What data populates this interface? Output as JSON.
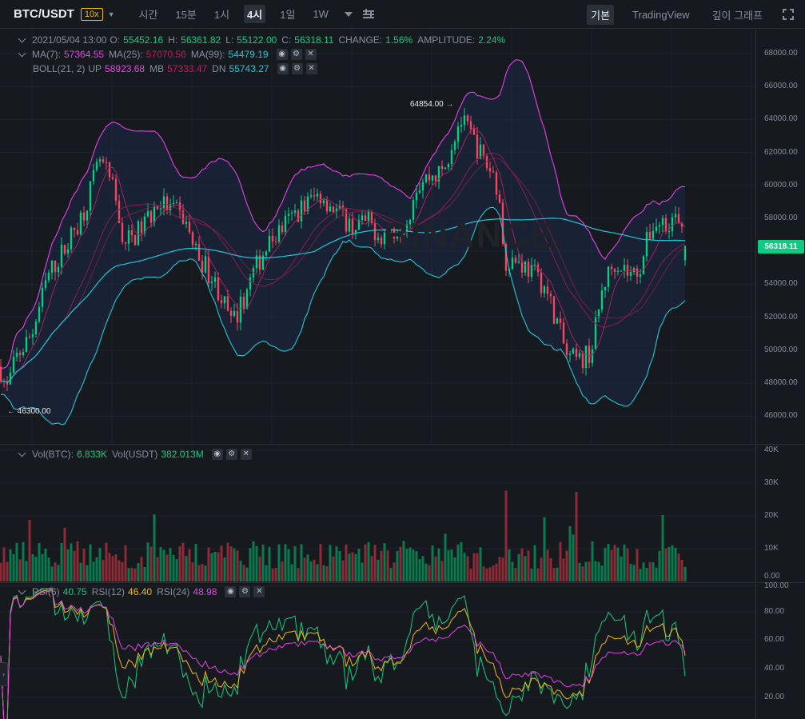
{
  "header": {
    "symbol": "BTC/USDT",
    "leverage": "10x",
    "intervals": [
      {
        "label": "시간",
        "active": false
      },
      {
        "label": "15분",
        "active": false
      },
      {
        "label": "1시",
        "active": false
      },
      {
        "label": "4시",
        "active": true
      },
      {
        "label": "1일",
        "active": false
      },
      {
        "label": "1W",
        "active": false
      }
    ],
    "views": [
      {
        "label": "기본",
        "active": true
      },
      {
        "label": "TradingView",
        "active": false
      },
      {
        "label": "깊이 그래프",
        "active": false
      }
    ]
  },
  "ohlc": {
    "date": "2021/05/04 13:00",
    "o_label": "O:",
    "o": "55452.16",
    "h_label": "H:",
    "h": "56361.82",
    "l_label": "L:",
    "l": "55122.00",
    "c_label": "C:",
    "c": "56318.11",
    "change_label": "CHANGE:",
    "change": "1.56%",
    "amp_label": "AMPLITUDE:",
    "amp": "2.24%"
  },
  "ma": {
    "ma7_label": "MA(7):",
    "ma7": "57364.55",
    "ma25_label": "MA(25):",
    "ma25": "57070.56",
    "ma99_label": "MA(99):",
    "ma99": "54479.19"
  },
  "boll": {
    "label": "BOLL(21, 2)",
    "up_label": "UP",
    "up": "58923.68",
    "mb_label": "MB",
    "mb": "57333.47",
    "dn_label": "DN",
    "dn": "55743.27"
  },
  "vol": {
    "btc_label": "Vol(BTC):",
    "btc": "6.833K",
    "usdt_label": "Vol(USDT)",
    "usdt": "382.013M"
  },
  "rsi": {
    "r6_label": "RSI(6)",
    "r6": "40.75",
    "r12_label": "RSI(12)",
    "r12": "46.40",
    "r24_label": "RSI(24)",
    "r24": "48.98"
  },
  "price_axis": [
    "68000.00",
    "66000.00",
    "64000.00",
    "62000.00",
    "60000.00",
    "58000.00",
    "56000.00",
    "54000.00",
    "52000.00",
    "50000.00",
    "48000.00",
    "46000.00"
  ],
  "vol_axis": [
    "40K",
    "30K",
    "20K",
    "10K",
    "0.00"
  ],
  "rsi_axis": [
    "100.00",
    "80.00",
    "60.00",
    "40.00",
    "20.00"
  ],
  "last_price": "56318.11",
  "high_marker": "64854.00",
  "low_marker": "46300.00",
  "watermark": "BINANCE",
  "colors": {
    "up": "#0ecb81",
    "down": "#f6465d",
    "ma7": "#e840e8",
    "ma25": "#c2185b",
    "ma99": "#1fc7d4",
    "rsi12": "#f0b90b"
  },
  "chart_data": {
    "type": "candlestick",
    "interval": "4h",
    "y_range": [
      45500,
      68800
    ],
    "price_anchors": [
      [
        0,
        49000
      ],
      [
        8,
        47500
      ],
      [
        20,
        49500
      ],
      [
        40,
        51000
      ],
      [
        60,
        54500
      ],
      [
        85,
        56500
      ],
      [
        105,
        58500
      ],
      [
        125,
        61500
      ],
      [
        140,
        60000
      ],
      [
        155,
        56500
      ],
      [
        170,
        57000
      ],
      [
        185,
        58000
      ],
      [
        200,
        59000
      ],
      [
        215,
        58500
      ],
      [
        230,
        58000
      ],
      [
        245,
        56000
      ],
      [
        258,
        55000
      ],
      [
        275,
        53500
      ],
      [
        290,
        51500
      ],
      [
        300,
        52500
      ],
      [
        315,
        54500
      ],
      [
        330,
        56000
      ],
      [
        345,
        57000
      ],
      [
        360,
        57800
      ],
      [
        380,
        58800
      ],
      [
        400,
        59500
      ],
      [
        420,
        58500
      ],
      [
        440,
        57500
      ],
      [
        460,
        57800
      ],
      [
        475,
        57000
      ],
      [
        490,
        57200
      ],
      [
        510,
        58000
      ],
      [
        520,
        60000
      ],
      [
        535,
        60500
      ],
      [
        555,
        60800
      ],
      [
        565,
        62500
      ],
      [
        575,
        64000
      ],
      [
        590,
        63000
      ],
      [
        605,
        61500
      ],
      [
        620,
        60500
      ],
      [
        632,
        55500
      ],
      [
        645,
        55500
      ],
      [
        660,
        55000
      ],
      [
        680,
        54000
      ],
      [
        695,
        52000
      ],
      [
        710,
        49500
      ],
      [
        725,
        49300
      ],
      [
        740,
        50000
      ],
      [
        755,
        54000
      ],
      [
        770,
        55500
      ],
      [
        790,
        54500
      ],
      [
        800,
        55000
      ],
      [
        815,
        57500
      ],
      [
        830,
        57800
      ],
      [
        845,
        58000
      ],
      [
        857,
        56300
      ]
    ],
    "volume_range": [
      0,
      40000
    ],
    "rsi_range": [
      10,
      100
    ]
  }
}
